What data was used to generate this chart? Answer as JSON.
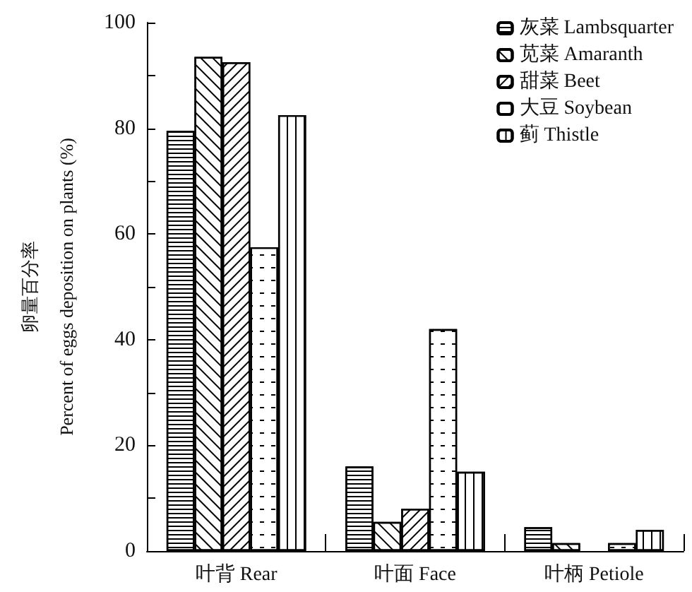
{
  "chart_data": {
    "type": "bar",
    "ylabel": "卵量百分率\nPercent of eggs deposition on plants (%)",
    "categories": [
      "叶背 Rear",
      "叶面 Face",
      "叶柄 Petiole"
    ],
    "series": [
      {
        "name": "灰菜 Lambsquarter",
        "color": "#ffffff",
        "values": [
          79.5,
          16,
          4.5
        ]
      },
      {
        "name": "苋菜 Amaranth",
        "color": "#ffffff",
        "values": [
          93.5,
          5.5,
          1.5
        ]
      },
      {
        "name": "甜菜 Beet",
        "color": "#ffffff",
        "values": [
          92.5,
          8,
          null
        ]
      },
      {
        "name": "大豆 Soybean",
        "color": "#ffffff",
        "values": [
          57.5,
          42,
          1.5
        ]
      },
      {
        "name": "蓟 Thistle",
        "color": "#ffffff",
        "values": [
          82.5,
          15,
          4
        ]
      }
    ],
    "ylim": [
      0,
      100
    ],
    "yticks": [
      0,
      {
        "value": 10,
        "label": null
      },
      20,
      {
        "value": 30,
        "label": null
      },
      40,
      {
        "value": 50,
        "label": null
      },
      60,
      {
        "value": 70,
        "label": null
      },
      80,
      {
        "value": 90,
        "label": null
      },
      100
    ],
    "grid": false,
    "legend": "top right"
  }
}
